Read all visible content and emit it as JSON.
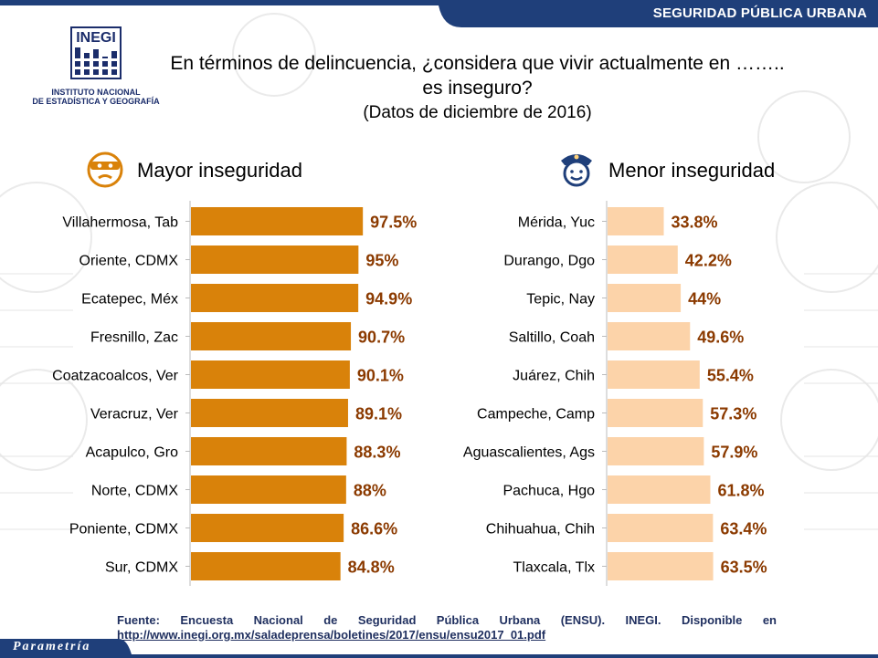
{
  "header": {
    "section": "SEGURIDAD PÚBLICA URBANA",
    "logo_text": "INEGI",
    "logo_line1": "INSTITUTO NACIONAL",
    "logo_line2": "DE ESTADÍSTICA Y GEOGRAFÍA"
  },
  "question": {
    "line1": "En términos de delincuencia, ¿considera que vivir actualmente en ……..",
    "line2": "es inseguro?",
    "date": "(Datos de diciembre de 2016)"
  },
  "colors": {
    "accent_dark": "#D9820A",
    "accent_light": "#FCD3A9",
    "label_value": "#8B3A00",
    "bar_blue": "#1F3F7A"
  },
  "chart_data": [
    {
      "type": "bar",
      "orientation": "horizontal",
      "title": "Mayor inseguridad",
      "icon": "masked-thief-icon",
      "categories": [
        "Villahermosa, Tab",
        "Oriente, CDMX",
        "Ecatepec, Méx",
        "Fresnillo, Zac",
        "Coatzacoalcos, Ver",
        "Veracruz, Ver",
        "Acapulco, Gro",
        "Norte, CDMX",
        "Poniente, CDMX",
        "Sur, CDMX"
      ],
      "values": [
        97.5,
        95,
        94.9,
        90.7,
        90.1,
        89.1,
        88.3,
        88,
        86.6,
        84.8
      ],
      "labels": [
        "97.5%",
        "95%",
        "94.9%",
        "90.7%",
        "90.1%",
        "89.1%",
        "88.3%",
        "88%",
        "86.6%",
        "84.8%"
      ],
      "color": "#D9820A"
    },
    {
      "type": "bar",
      "orientation": "horizontal",
      "title": "Menor inseguridad",
      "icon": "police-officer-icon",
      "categories": [
        "Mérida, Yuc",
        "Durango, Dgo",
        "Tepic, Nay",
        "Saltillo, Coah",
        "Juárez, Chih",
        "Campeche, Camp",
        "Aguascalientes, Ags",
        "Pachuca, Hgo",
        "Chihuahua, Chih",
        "Tlaxcala, Tlx"
      ],
      "values": [
        33.8,
        42.2,
        44,
        49.6,
        55.4,
        57.3,
        57.9,
        61.8,
        63.4,
        63.5
      ],
      "labels": [
        "33.8%",
        "42.2%",
        "44%",
        "49.6%",
        "55.4%",
        "57.3%",
        "57.9%",
        "61.8%",
        "63.4%",
        "63.5%"
      ],
      "color": "#FCD3A9"
    }
  ],
  "footer": {
    "source": "Fuente: Encuesta Nacional de Seguridad Pública Urbana (ENSU). INEGI. Disponible en",
    "link": "http://www.inegi.org.mx/saladeprensa/boletines/2017/ensu/ensu2017_01.pdf",
    "brand": "Parametría"
  }
}
